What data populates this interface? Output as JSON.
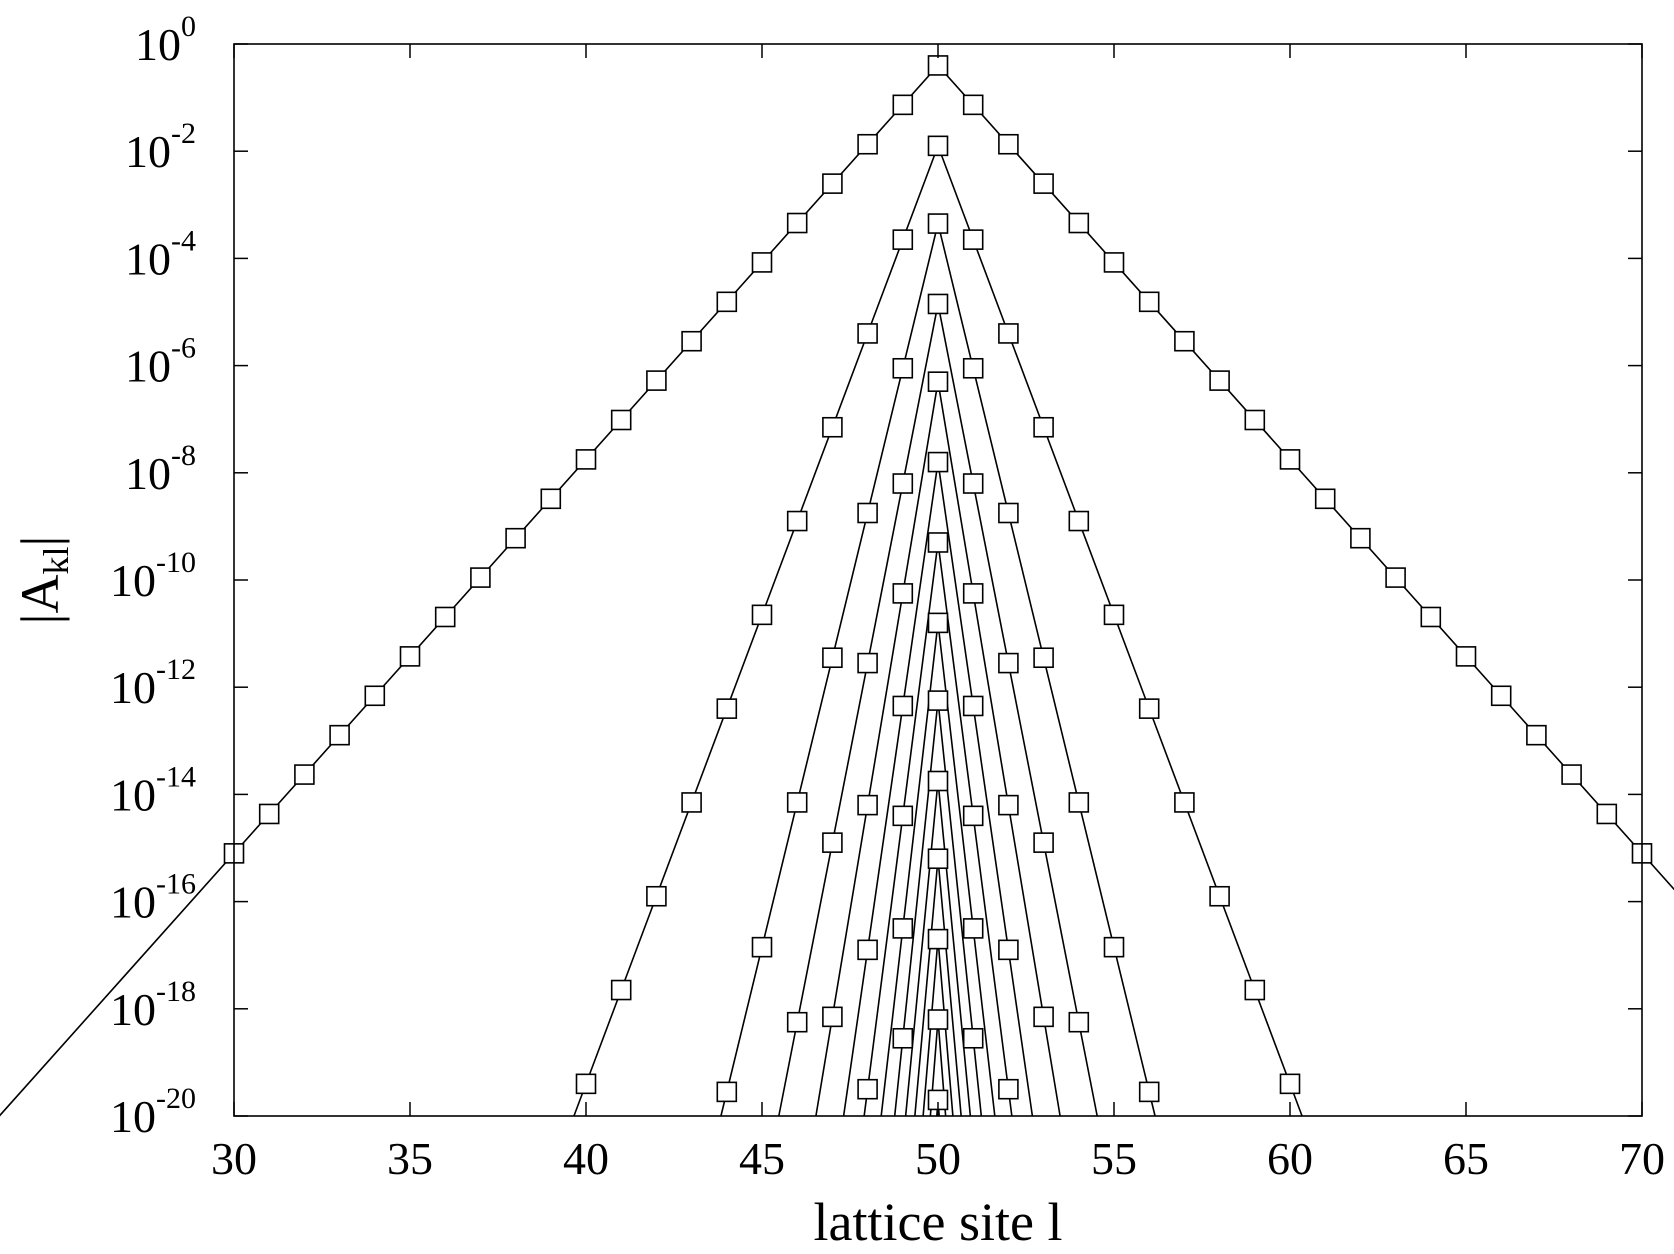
{
  "chart_data": {
    "type": "line",
    "xlabel": "lattice site l",
    "ylabel_main": "|A",
    "ylabel_sub": "kl",
    "ylabel_end": "|",
    "xlim": [
      30,
      70
    ],
    "ylim_exp": [
      -20,
      0
    ],
    "y_scale": "log",
    "x_ticks": [
      30,
      35,
      40,
      45,
      50,
      55,
      60,
      65,
      70
    ],
    "y_ticks": [
      {
        "base": "10",
        "exp": "0",
        "value": 0
      },
      {
        "base": "10",
        "exp": "-2",
        "value": -2
      },
      {
        "base": "10",
        "exp": "-4",
        "value": -4
      },
      {
        "base": "10",
        "exp": "-6",
        "value": -6
      },
      {
        "base": "10",
        "exp": "-8",
        "value": -8
      },
      {
        "base": "10",
        "exp": "-10",
        "value": -10
      },
      {
        "base": "10",
        "exp": "-12",
        "value": -12
      },
      {
        "base": "10",
        "exp": "-14",
        "value": -14
      },
      {
        "base": "10",
        "exp": "-16",
        "value": -16
      },
      {
        "base": "10",
        "exp": "-18",
        "value": -18
      },
      {
        "base": "10",
        "exp": "-20",
        "value": -20
      }
    ],
    "marker": "open-square",
    "grid": false,
    "series": [
      {
        "peak_log10": -0.4,
        "decay_log10_per_site": 0.735
      },
      {
        "peak_log10": -1.9,
        "decay_log10_per_site": 1.75
      },
      {
        "peak_log10": -3.35,
        "decay_log10_per_site": 2.7
      },
      {
        "peak_log10": -4.85,
        "decay_log10_per_site": 3.35
      },
      {
        "peak_log10": -6.3,
        "decay_log10_per_site": 3.95
      },
      {
        "peak_log10": -7.8,
        "decay_log10_per_site": 4.55
      },
      {
        "peak_log10": -9.3,
        "decay_log10_per_site": 5.1
      },
      {
        "peak_log10": -10.8,
        "decay_log10_per_site": 5.7
      },
      {
        "peak_log10": -12.25,
        "decay_log10_per_site": 6.3
      },
      {
        "peak_log10": -13.75,
        "decay_log10_per_site": 6.8
      },
      {
        "peak_log10": -15.2,
        "decay_log10_per_site": 7.3
      },
      {
        "peak_log10": -16.7,
        "decay_log10_per_site": 7.8
      },
      {
        "peak_log10": -18.2,
        "decay_log10_per_site": 8.3
      },
      {
        "peak_log10": -19.7,
        "decay_log10_per_site": 8.8
      }
    ]
  }
}
